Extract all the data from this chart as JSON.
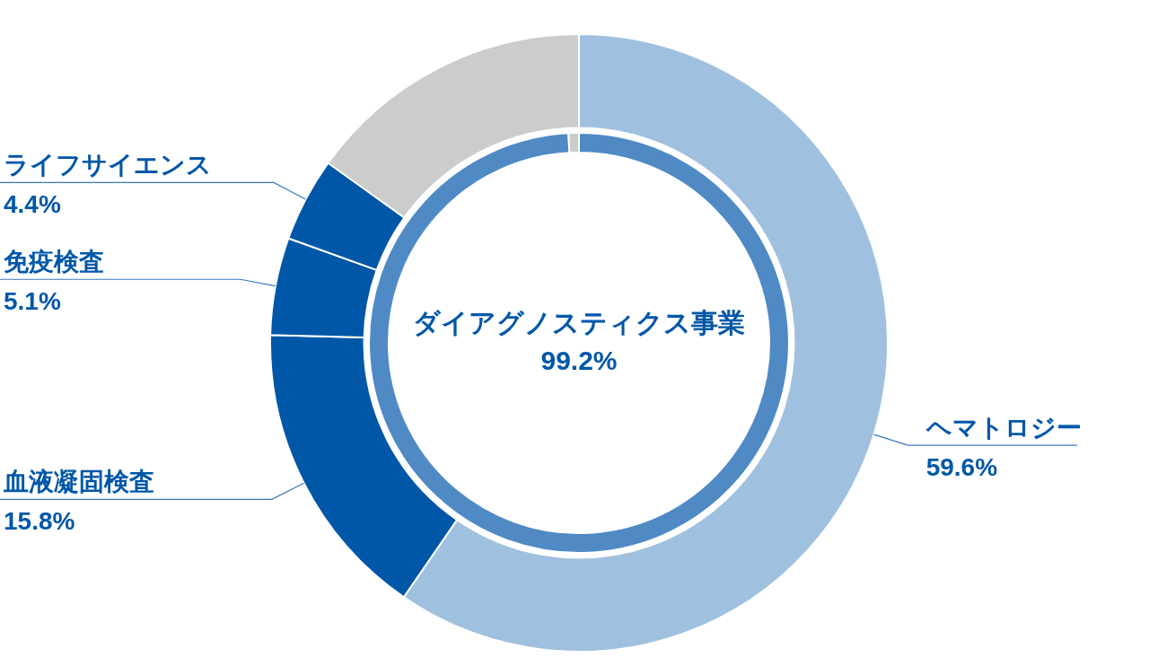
{
  "chart_data": [
    {
      "type": "donut",
      "categories": [
        "ヘマトロジー",
        "血液凝固検査",
        "免疫検査",
        "ライフサイエンス",
        null
      ],
      "values": [
        59.6,
        15.8,
        5.1,
        4.4,
        15.1
      ],
      "colors": [
        "#a0c0df",
        "#0057a8",
        "#0057a8",
        "#0057a8",
        "#cccccc"
      ],
      "value_labels": [
        "59.6%",
        "15.8%",
        "5.1%",
        "4.4%",
        null
      ],
      "legend": false
    },
    {
      "type": "donut",
      "categories": [
        "ダイアグノスティクス事業",
        null
      ],
      "values": [
        99.2,
        0.8
      ],
      "colors": [
        "#4f8ac5",
        "#cccccc"
      ],
      "value_labels": [
        "99.2%",
        null
      ],
      "legend": false
    }
  ]
}
